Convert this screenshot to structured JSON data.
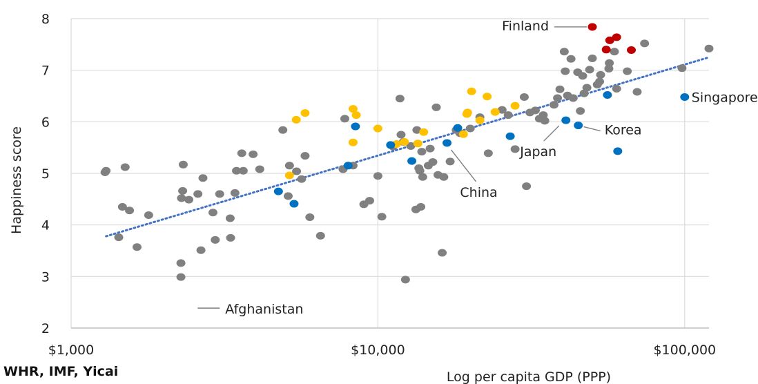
{
  "source": "WHR, IMF, Yicai",
  "colors": {
    "grid": "#d9d9d9",
    "gray": "#808080",
    "yellow": "#ffc000",
    "blue": "#0070c0",
    "red": "#c00000",
    "trend": "#4472c4"
  },
  "chart_data": {
    "type": "scatter",
    "xlabel": "Log per capita GDP (PPP)",
    "ylabel": "Happiness score",
    "x_scale": "log",
    "xlim": [
      1000,
      120000
    ],
    "ylim": [
      2,
      8
    ],
    "x_ticks": [
      1000,
      10000,
      100000
    ],
    "x_tick_labels": [
      "$1,000",
      "$10,000",
      "$100,000"
    ],
    "y_ticks": [
      2,
      3,
      4,
      5,
      6,
      7,
      8
    ],
    "y_tick_labels": [
      "2",
      "3",
      "4",
      "5",
      "6",
      "7",
      "8"
    ],
    "grid": true,
    "trendline": {
      "style": "dotted",
      "x": [
        1300,
        120000
      ],
      "y": [
        3.78,
        7.25
      ]
    },
    "annotations": [
      {
        "text": "Finland",
        "x": 50000,
        "y": 7.84
      },
      {
        "text": "Singapore",
        "x": 100000,
        "y": 6.48
      },
      {
        "text": "Korea",
        "x": 45000,
        "y": 5.93
      },
      {
        "text": "Japan",
        "x": 41000,
        "y": 6.03
      },
      {
        "text": "China",
        "x": 16800,
        "y": 5.59
      },
      {
        "text": "Afghanistan",
        "x": 2480,
        "y": 2.4
      }
    ],
    "series": [
      {
        "color": "gray",
        "points": [
          [
            1290,
            5.02
          ],
          [
            1300,
            5.05
          ],
          [
            1430,
            3.76
          ],
          [
            1470,
            4.35
          ],
          [
            1500,
            5.12
          ],
          [
            1550,
            4.28
          ],
          [
            1640,
            3.57
          ],
          [
            1790,
            4.19
          ],
          [
            2280,
            3.26
          ],
          [
            2280,
            2.99
          ],
          [
            2290,
            4.52
          ],
          [
            2310,
            4.66
          ],
          [
            2320,
            5.17
          ],
          [
            2420,
            4.49
          ],
          [
            2590,
            4.6
          ],
          [
            2650,
            3.51
          ],
          [
            2690,
            4.91
          ],
          [
            2900,
            4.24
          ],
          [
            2950,
            3.71
          ],
          [
            3050,
            4.6
          ],
          [
            3300,
            4.13
          ],
          [
            3310,
            3.75
          ],
          [
            3420,
            4.62
          ],
          [
            3460,
            5.05
          ],
          [
            3600,
            5.39
          ],
          [
            3640,
            5.05
          ],
          [
            3920,
            5.37
          ],
          [
            4120,
            5.08
          ],
          [
            4900,
            5.84
          ],
          [
            5100,
            4.56
          ],
          [
            5150,
            5.15
          ],
          [
            5430,
            5.04
          ],
          [
            5640,
            4.89
          ],
          [
            5790,
            5.34
          ],
          [
            6000,
            4.15
          ],
          [
            6500,
            3.79
          ],
          [
            7700,
            5.08
          ],
          [
            7800,
            6.06
          ],
          [
            8300,
            5.15
          ],
          [
            9000,
            4.4
          ],
          [
            9400,
            4.47
          ],
          [
            10000,
            4.95
          ],
          [
            10300,
            4.16
          ],
          [
            11200,
            5.52
          ],
          [
            11800,
            6.45
          ],
          [
            11900,
            5.75
          ],
          [
            12100,
            5.61
          ],
          [
            12300,
            2.94
          ],
          [
            12800,
            5.53
          ],
          [
            13300,
            4.3
          ],
          [
            13400,
            5.84
          ],
          [
            13600,
            5.1
          ],
          [
            13700,
            5.05
          ],
          [
            13800,
            4.35
          ],
          [
            13900,
            5.42
          ],
          [
            14000,
            4.93
          ],
          [
            14600,
            5.15
          ],
          [
            14800,
            5.48
          ],
          [
            15100,
            5.22
          ],
          [
            15500,
            6.28
          ],
          [
            15700,
            4.97
          ],
          [
            16200,
            3.46
          ],
          [
            16400,
            4.93
          ],
          [
            17200,
            5.23
          ],
          [
            18000,
            5.84
          ],
          [
            18500,
            5.78
          ],
          [
            20000,
            5.87
          ],
          [
            21500,
            6.09
          ],
          [
            22900,
            5.39
          ],
          [
            25400,
            6.23
          ],
          [
            26600,
            6.13
          ],
          [
            28000,
            5.47
          ],
          [
            30000,
            6.48
          ],
          [
            30500,
            4.75
          ],
          [
            31300,
            6.18
          ],
          [
            32600,
            6.22
          ],
          [
            33600,
            6.06
          ],
          [
            34600,
            6.13
          ],
          [
            35000,
            6.02
          ],
          [
            37500,
            6.33
          ],
          [
            38500,
            6.46
          ],
          [
            39200,
            6.63
          ],
          [
            40500,
            7.36
          ],
          [
            40800,
            6.98
          ],
          [
            41500,
            6.51
          ],
          [
            42600,
            7.22
          ],
          [
            43300,
            6.46
          ],
          [
            44800,
            6.96
          ],
          [
            45700,
            6.21
          ],
          [
            46500,
            6.89
          ],
          [
            47000,
            6.55
          ],
          [
            48000,
            6.66
          ],
          [
            49000,
            7.01
          ],
          [
            50000,
            7.23
          ],
          [
            51900,
            6.72
          ],
          [
            52800,
            6.78
          ],
          [
            53200,
            6.91
          ],
          [
            56600,
            7.03
          ],
          [
            56800,
            7.14
          ],
          [
            59000,
            7.36
          ],
          [
            60000,
            6.64
          ],
          [
            65000,
            6.98
          ],
          [
            70000,
            6.58
          ],
          [
            74000,
            7.52
          ],
          [
            98000,
            7.04
          ],
          [
            120000,
            7.42
          ]
        ]
      },
      {
        "color": "yellow",
        "points": [
          [
            5150,
            4.96
          ],
          [
            5420,
            6.04
          ],
          [
            5790,
            6.17
          ],
          [
            8300,
            6.25
          ],
          [
            8500,
            6.13
          ],
          [
            8300,
            5.6
          ],
          [
            10000,
            5.87
          ],
          [
            11500,
            5.57
          ],
          [
            12200,
            5.61
          ],
          [
            13500,
            5.58
          ],
          [
            14100,
            5.8
          ],
          [
            19000,
            5.76
          ],
          [
            19500,
            6.15
          ],
          [
            19600,
            6.18
          ],
          [
            20200,
            6.59
          ],
          [
            21500,
            6.03
          ],
          [
            22700,
            6.49
          ],
          [
            24100,
            6.19
          ],
          [
            28000,
            6.31
          ]
        ]
      },
      {
        "color": "blue",
        "points": [
          [
            4740,
            4.65
          ],
          [
            5330,
            4.41
          ],
          [
            8000,
            5.15
          ],
          [
            8450,
            5.91
          ],
          [
            11000,
            5.55
          ],
          [
            12900,
            5.24
          ],
          [
            16800,
            5.59
          ],
          [
            18200,
            5.88
          ],
          [
            27000,
            5.72
          ],
          [
            41000,
            6.03
          ],
          [
            45000,
            5.93
          ],
          [
            56000,
            6.52
          ],
          [
            60500,
            5.43
          ],
          [
            100000,
            6.48
          ]
        ]
      },
      {
        "color": "red",
        "points": [
          [
            50000,
            7.84
          ],
          [
            55500,
            7.4
          ],
          [
            57000,
            7.58
          ],
          [
            60000,
            7.64
          ],
          [
            67000,
            7.39
          ]
        ]
      }
    ]
  }
}
